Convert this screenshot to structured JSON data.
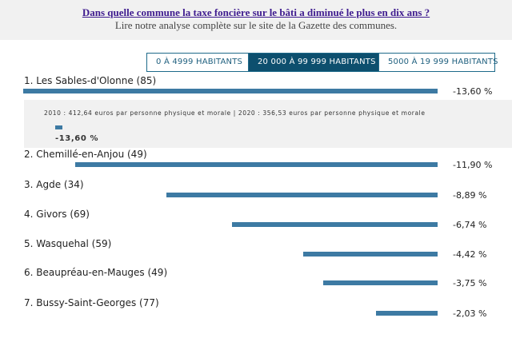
{
  "header": {
    "link": "Dans quelle commune la taxe foncière sur le bâti a diminué le plus en dix ans ?",
    "subtitle": "Lire notre analyse complète sur le site de la Gazette des communes."
  },
  "tabs": [
    {
      "label": "0 À 4999 HABITANTS",
      "active": false
    },
    {
      "label": "20 000 À 99 999 HABITANTS",
      "active": true
    },
    {
      "label": "5000 À 19 999 HABITANTS",
      "active": false
    }
  ],
  "detail": {
    "text": "2010 : 412,64 euros par personne physique et morale | 2020 : 356,53 euros par personne physique et morale",
    "value_label": "-13,60 %",
    "value": -13.6
  },
  "chart_data": {
    "type": "bar",
    "orientation": "horizontal",
    "categories": [
      "1. Les Sables-d'Olonne (85)",
      "2. Chemillé-en-Anjou (49)",
      "3. Agde (34)",
      "4. Givors (69)",
      "5. Wasquehal (59)",
      "6. Beaupréau-en-Mauges (49)",
      "7. Bussy-Saint-Georges (77)"
    ],
    "values": [
      -13.6,
      -11.9,
      -8.89,
      -6.74,
      -4.42,
      -3.75,
      -2.03
    ],
    "value_labels": [
      "-13,60 %",
      "-11,90 %",
      "-8,89 %",
      "-6,74 %",
      "-4,42 %",
      "-3,75 %",
      "-2,03 %"
    ],
    "xlim": [
      -13.6,
      0
    ]
  }
}
